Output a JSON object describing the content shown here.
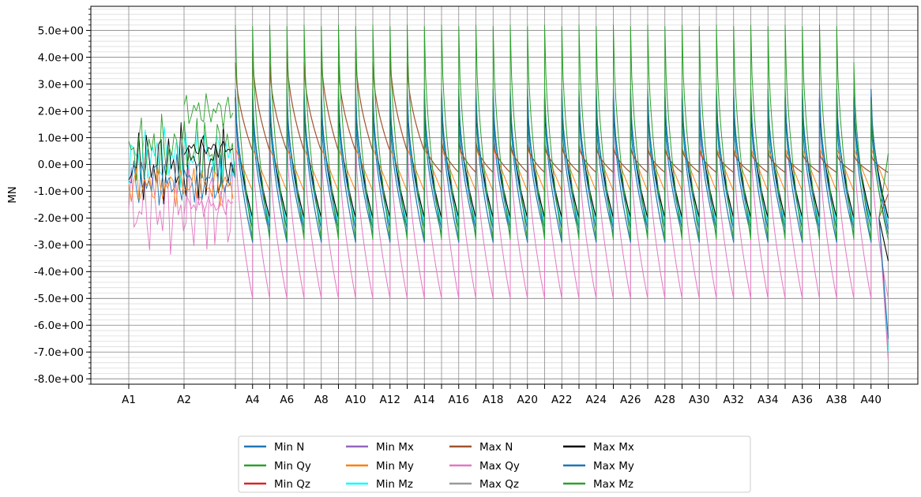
{
  "chart_data": {
    "type": "line",
    "ylabel": "MN",
    "xlabel": "",
    "ylim": [
      -8.2,
      5.9
    ],
    "yticks": [
      5,
      4,
      3,
      2,
      1,
      0,
      -1,
      -2,
      -3,
      -4,
      -5,
      -6,
      -7,
      -8
    ],
    "ytick_labels": [
      "5.0e+00",
      "4.0e+00",
      "3.0e+00",
      "2.0e+00",
      "1.0e+00",
      "0.0e+00",
      "-1.0e+00",
      "-2.0e+00",
      "-3.0e+00",
      "-4.0e+00",
      "-5.0e+00",
      "-6.0e+00",
      "-7.0e+00",
      "-8.0e+00"
    ],
    "x_axis_labels": [
      "A1",
      "A2",
      "A4",
      "A6",
      "A8",
      "A10",
      "A12",
      "A14",
      "A16",
      "A18",
      "A20",
      "A22",
      "A24",
      "A26",
      "A28",
      "A30",
      "A32",
      "A34",
      "A36",
      "A38",
      "A40"
    ],
    "grid": true,
    "legend_position": "bottom-center",
    "series": [
      {
        "name": "Min N",
        "color": "#1f77b4"
      },
      {
        "name": "Min Qy",
        "color": "#2ca02c"
      },
      {
        "name": "Min Qz",
        "color": "#d62728"
      },
      {
        "name": "Min Mx",
        "color": "#9467bd"
      },
      {
        "name": "Min My",
        "color": "#ff7f0e"
      },
      {
        "name": "Min Mz",
        "color": "#00ffff"
      },
      {
        "name": "Max N",
        "color": "#a0522d"
      },
      {
        "name": "Max Qy",
        "color": "#e377c2"
      },
      {
        "name": "Max Qz",
        "color": "#999999"
      },
      {
        "name": "Max Mx",
        "color": "#000000"
      },
      {
        "name": "Max My",
        "color": "#1f77b4"
      },
      {
        "name": "Max Mz",
        "color": "#2ca02c"
      }
    ],
    "envelope": {
      "max_mz_peak": 5.2,
      "max_n_peak": 4.2,
      "max_qy_trough": -5.0,
      "min_mz_trough": -2.8,
      "end_value": -7.3
    }
  }
}
